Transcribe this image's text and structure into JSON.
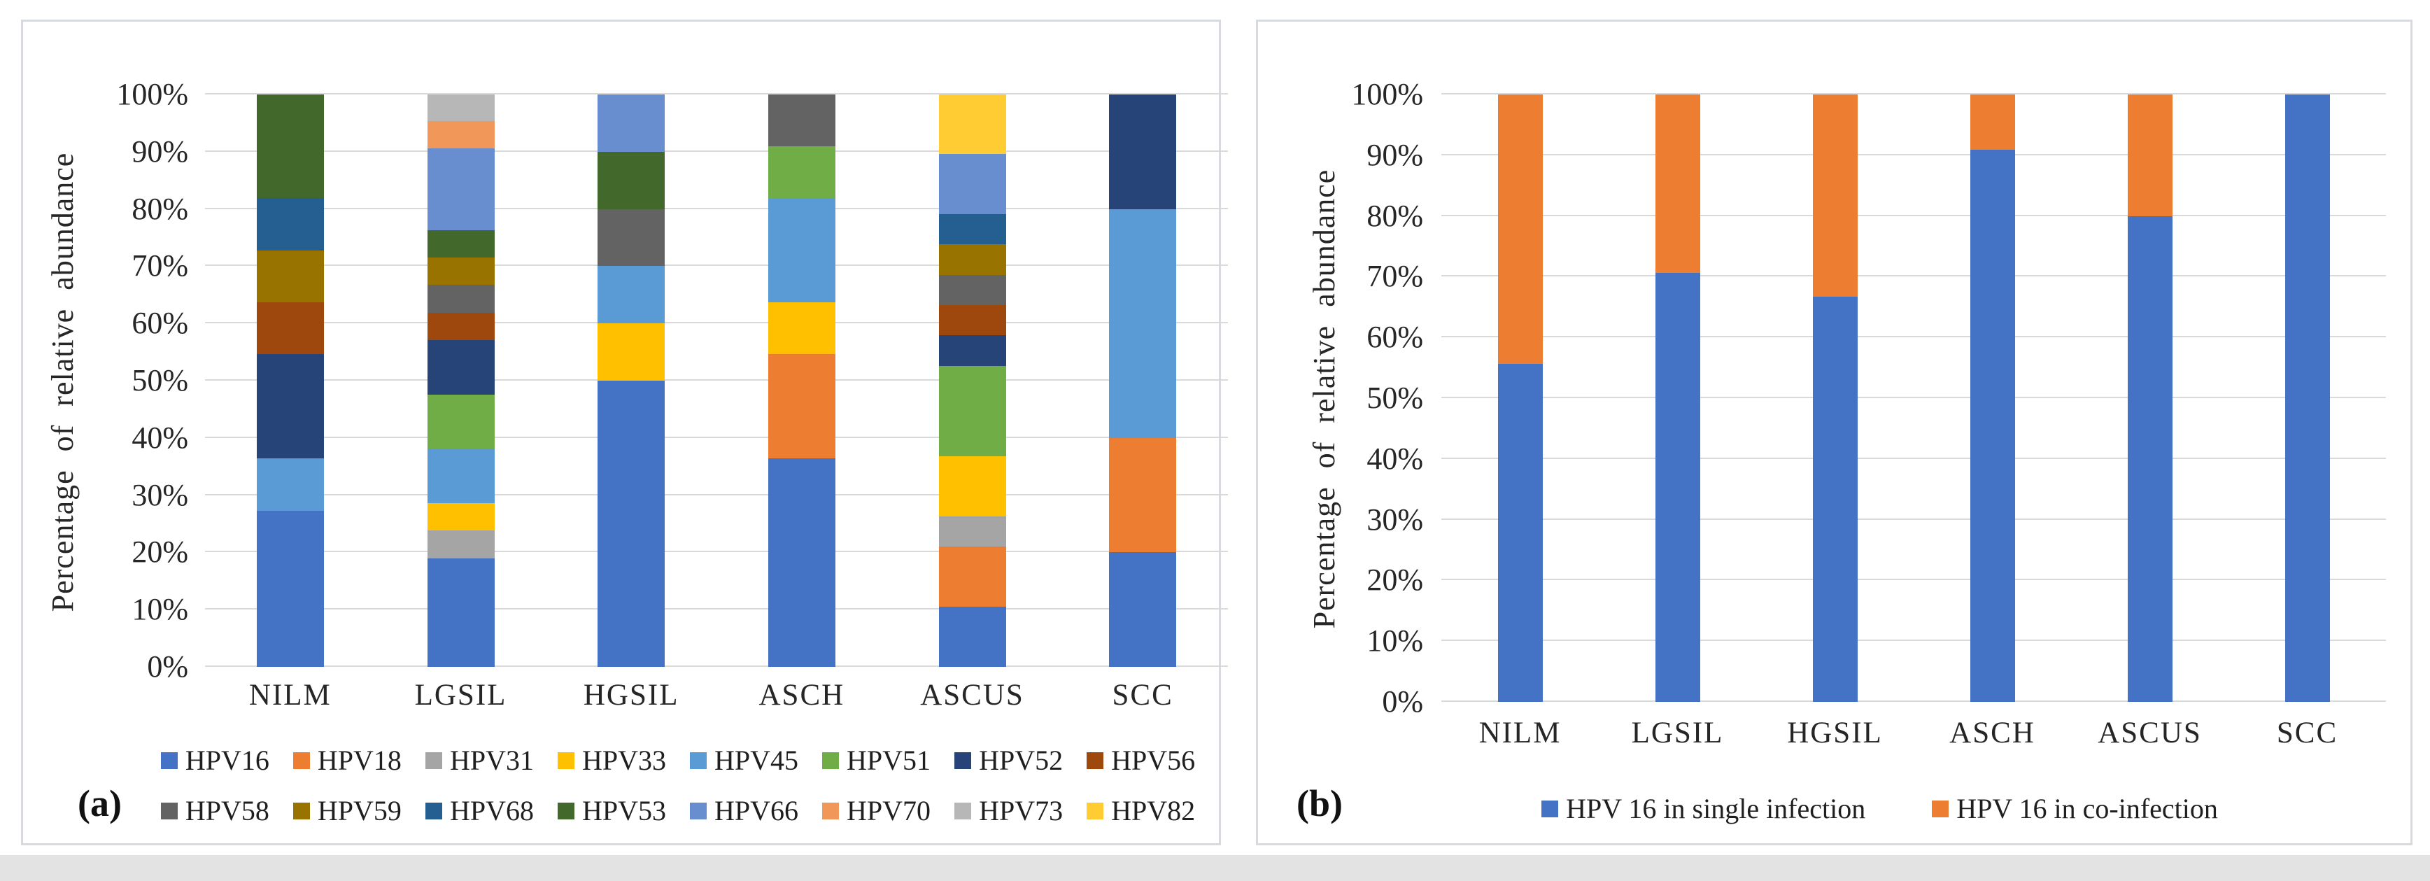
{
  "chart_data": [
    {
      "type": "bar",
      "stacked": true,
      "panel_label": "(a)",
      "title": "",
      "ylabel": "Percentage of relative abundance",
      "xlabel": "",
      "categories": [
        "NILM",
        "LGSIL",
        "HGSIL",
        "ASCH",
        "ASCUS",
        "SCC"
      ],
      "y_ticks": [
        "0%",
        "10%",
        "20%",
        "30%",
        "40%",
        "50%",
        "60%",
        "70%",
        "80%",
        "90%",
        "100%"
      ],
      "ylim": [
        0,
        100
      ],
      "grid": true,
      "values_unit": "percent",
      "legend_position": "bottom",
      "series": [
        {
          "name": "HPV16",
          "color": "#4472C4",
          "values": [
            27.3,
            19.0,
            50.0,
            36.4,
            10.5,
            20.0
          ]
        },
        {
          "name": "HPV18",
          "color": "#ED7D31",
          "values": [
            0,
            0,
            0,
            18.2,
            10.5,
            20.0
          ]
        },
        {
          "name": "HPV31",
          "color": "#A5A5A5",
          "values": [
            0,
            4.8,
            0,
            0,
            5.3,
            0
          ]
        },
        {
          "name": "HPV33",
          "color": "#FFC000",
          "values": [
            0,
            4.8,
            10.0,
            9.1,
            10.5,
            0
          ]
        },
        {
          "name": "HPV45",
          "color": "#5B9BD5",
          "values": [
            9.1,
            9.5,
            10.0,
            18.2,
            0,
            40.0
          ]
        },
        {
          "name": "HPV51",
          "color": "#70AD47",
          "values": [
            0,
            9.5,
            0,
            9.1,
            15.8,
            0
          ]
        },
        {
          "name": "HPV52",
          "color": "#264478",
          "values": [
            18.2,
            9.5,
            0,
            0,
            5.3,
            20.0
          ]
        },
        {
          "name": "HPV56",
          "color": "#9E480E",
          "values": [
            9.1,
            4.8,
            0,
            0,
            5.3,
            0
          ]
        },
        {
          "name": "HPV58",
          "color": "#636363",
          "values": [
            0,
            4.8,
            10.0,
            9.1,
            5.3,
            0
          ]
        },
        {
          "name": "HPV59",
          "color": "#997300",
          "values": [
            9.1,
            4.8,
            0,
            0,
            5.3,
            0
          ]
        },
        {
          "name": "HPV68",
          "color": "#255E91",
          "values": [
            9.1,
            0,
            0,
            0,
            5.3,
            0
          ]
        },
        {
          "name": "HPV53",
          "color": "#43682B",
          "values": [
            18.2,
            4.8,
            10.0,
            0,
            0,
            0
          ]
        },
        {
          "name": "HPV66",
          "color": "#698ED0",
          "values": [
            0,
            14.3,
            10.0,
            0,
            10.5,
            0
          ]
        },
        {
          "name": "HPV70",
          "color": "#F1975A",
          "values": [
            0,
            4.8,
            0,
            0,
            0,
            0
          ]
        },
        {
          "name": "HPV73",
          "color": "#B7B7B7",
          "values": [
            0,
            4.8,
            0,
            0,
            0,
            0
          ]
        },
        {
          "name": "HPV82",
          "color": "#FFCD33",
          "values": [
            0,
            0,
            0,
            0,
            10.5,
            0
          ]
        }
      ],
      "legend_rows": [
        [
          "HPV16",
          "HPV18",
          "HPV31",
          "HPV33",
          "HPV45",
          "HPV51",
          "HPV52",
          "HPV56"
        ],
        [
          "HPV58",
          "HPV59",
          "HPV68",
          "HPV53",
          "HPV66",
          "HPV70",
          "HPV73",
          "HPV82"
        ]
      ]
    },
    {
      "type": "bar",
      "stacked": true,
      "panel_label": "(b)",
      "title": "",
      "ylabel": "Percentage of relative abundance",
      "xlabel": "",
      "categories": [
        "NILM",
        "LGSIL",
        "HGSIL",
        "ASCH",
        "ASCUS",
        "SCC"
      ],
      "y_ticks": [
        "0%",
        "10%",
        "20%",
        "30%",
        "40%",
        "50%",
        "60%",
        "70%",
        "80%",
        "90%",
        "100%"
      ],
      "ylim": [
        0,
        100
      ],
      "grid": true,
      "values_unit": "percent",
      "legend_position": "bottom",
      "series": [
        {
          "name": "HPV 16 in single infection",
          "color": "#4472C4",
          "values": [
            55.6,
            70.6,
            66.7,
            90.9,
            80.0,
            100.0
          ]
        },
        {
          "name": "HPV 16 in co-infection",
          "color": "#ED7D31",
          "values": [
            44.4,
            29.4,
            33.3,
            9.1,
            20.0,
            0
          ]
        }
      ],
      "legend_rows": [
        [
          "HPV 16 in single infection",
          "HPV 16 in co-infection"
        ]
      ]
    }
  ]
}
